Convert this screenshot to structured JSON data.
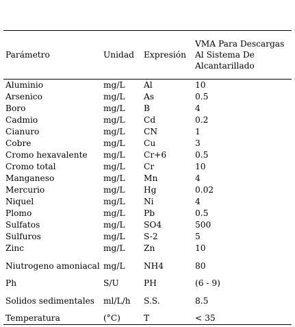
{
  "table": {
    "headers": {
      "parametro": "Parámetro",
      "unidad": "Unidad",
      "expresion": "Expresión",
      "vma": "VMA Para Descargas Al Sistema De Alcantarillado"
    },
    "rows": [
      {
        "parametro": "Aluminio",
        "unidad": "mg/L",
        "expresion": "Al",
        "vma": "10"
      },
      {
        "parametro": "Arsenico",
        "unidad": "mg/L",
        "expresion": "As",
        "vma": "0.5"
      },
      {
        "parametro": "Boro",
        "unidad": "mg/L",
        "expresion": "B",
        "vma": "4"
      },
      {
        "parametro": "Cadmio",
        "unidad": "mg/L",
        "expresion": "Cd",
        "vma": "0.2"
      },
      {
        "parametro": "Cianuro",
        "unidad": "mg/L",
        "expresion": "CN",
        "vma": "1"
      },
      {
        "parametro": "Cobre",
        "unidad": "mg/L",
        "expresion": "Cu",
        "vma": "3"
      },
      {
        "parametro": "Cromo hexavalente",
        "unidad": "mg/L",
        "expresion": "Cr+6",
        "vma": "0.5"
      },
      {
        "parametro": "Cromo total",
        "unidad": "mg/L",
        "expresion": "Cr",
        "vma": "10"
      },
      {
        "parametro": "Manganeso",
        "unidad": "mg/L",
        "expresion": "Mn",
        "vma": "4"
      },
      {
        "parametro": "Mercurio",
        "unidad": "mg/L",
        "expresion": "Hg",
        "vma": "0.02"
      },
      {
        "parametro": "Niquel",
        "unidad": "mg/L",
        "expresion": "Ni",
        "vma": "4"
      },
      {
        "parametro": "Plomo",
        "unidad": "mg/L",
        "expresion": "Pb",
        "vma": "0.5"
      },
      {
        "parametro": "Sulfatos",
        "unidad": "mg/L",
        "expresion": "SO4",
        "vma": "500"
      },
      {
        "parametro": "Sulfuros",
        "unidad": "mg/L",
        "expresion": "S-2",
        "vma": "5"
      },
      {
        "parametro": "Zinc",
        "unidad": "mg/L",
        "expresion": "Zn",
        "vma": "10"
      },
      {
        "parametro": "Niutrogeno amoniacal",
        "unidad": "mg/L",
        "expresion": "NH4",
        "vma": "80"
      },
      {
        "parametro": "Ph",
        "unidad": "S/U",
        "expresion": "PH",
        "vma": "(6 - 9)"
      },
      {
        "parametro": "Solidos sedimentales",
        "unidad": "ml/L/h",
        "expresion": "S.S.",
        "vma": "8.5"
      },
      {
        "parametro": "Temperatura",
        "unidad": "(°C)",
        "expresion": "T",
        "vma": "< 35"
      }
    ]
  }
}
